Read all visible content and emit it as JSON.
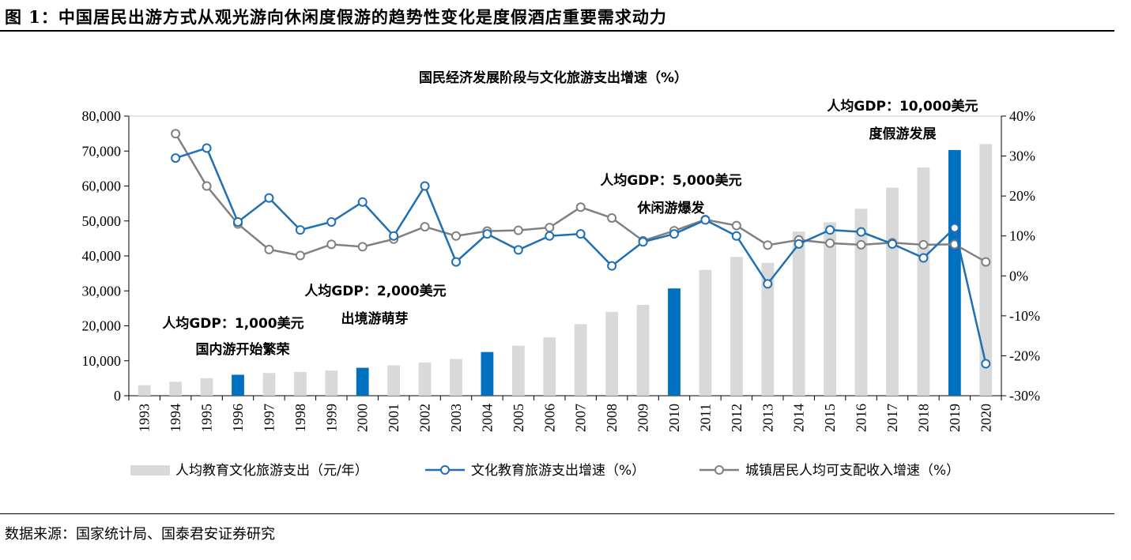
{
  "figure": {
    "title": "图 1：中国居民出游方式从观光游向休闲度假游的趋势性变化是度假酒店重要需求动力",
    "source": "数据来源：国家统计局、国泰君安证券研究"
  },
  "colors": {
    "bar_default": "#d9d9d9",
    "bar_highlight": "#0070c0",
    "line_culture": "#1f6fb5",
    "line_income": "#808080"
  },
  "chart_data": {
    "type": "bar",
    "title": "国民经济发展阶段与文化旅游支出增速（%）",
    "categories": [
      "1993",
      "1994",
      "1995",
      "1996",
      "1997",
      "1998",
      "1999",
      "2000",
      "2001",
      "2002",
      "2003",
      "2004",
      "2005",
      "2006",
      "2007",
      "2008",
      "2009",
      "2010",
      "2011",
      "2012",
      "2013",
      "2014",
      "2015",
      "2016",
      "2017",
      "2018",
      "2019",
      "2020"
    ],
    "ylim_left": [
      0,
      80000
    ],
    "ylim_right": [
      -30,
      40
    ],
    "yticks_left": [
      "0",
      "10,000",
      "20,000",
      "30,000",
      "40,000",
      "50,000",
      "60,000",
      "70,000",
      "80,000"
    ],
    "yticks_right": [
      "-30%",
      "-20%",
      "-10%",
      "0%",
      "10%",
      "20%",
      "30%",
      "40%"
    ],
    "grid": false,
    "legend_position": "bottom",
    "series": [
      {
        "name": "人均教育文化旅游支出（元/年）",
        "type": "bar",
        "axis": "left",
        "values": [
          3000,
          4000,
          5000,
          6000,
          6500,
          6800,
          7200,
          8000,
          8700,
          9500,
          10500,
          12500,
          14300,
          16700,
          20500,
          24000,
          26000,
          30700,
          36000,
          39700,
          38000,
          47000,
          49600,
          53500,
          59500,
          65300,
          70300,
          72000
        ],
        "highlight": [
          "1996",
          "2000",
          "2004",
          "2010",
          "2019"
        ]
      },
      {
        "name": "文化教育旅游支出增速（%）",
        "type": "line",
        "axis": "right",
        "x": [
          "1994",
          "1995",
          "1996",
          "1997",
          "1998",
          "1999",
          "2000",
          "2001",
          "2002",
          "2003",
          "2004",
          "2005",
          "2006",
          "2007",
          "2008",
          "2009",
          "2010",
          "2011",
          "2012",
          "2013",
          "2014",
          "2015",
          "2016",
          "2017",
          "2018",
          "2019",
          "2020"
        ],
        "values": [
          29.5,
          32,
          13.5,
          19.5,
          11.5,
          13.5,
          18.5,
          10,
          22.5,
          3.5,
          10.5,
          6.5,
          10,
          10.5,
          2.5,
          8.5,
          10.5,
          14,
          10,
          -2,
          8,
          11.5,
          11,
          8,
          4.5,
          12,
          -22
        ]
      },
      {
        "name": "城镇居民人均可支配收入增速（%）",
        "type": "line",
        "axis": "right",
        "x": [
          "1994",
          "1995",
          "1996",
          "1997",
          "1998",
          "1999",
          "2000",
          "2001",
          "2002",
          "2003",
          "2004",
          "2005",
          "2006",
          "2007",
          "2008",
          "2009",
          "2010",
          "2011",
          "2012",
          "2013",
          "2014",
          "2015",
          "2016",
          "2017",
          "2018",
          "2019",
          "2020"
        ],
        "values": [
          35.6,
          22.5,
          13,
          6.6,
          5.1,
          7.9,
          7.3,
          9.2,
          12.3,
          10,
          11.2,
          11.4,
          12.1,
          17.2,
          14.5,
          8.8,
          11.3,
          14.1,
          12.6,
          7.7,
          9,
          8.2,
          7.8,
          8.3,
          7.8,
          7.9,
          3.5
        ]
      }
    ],
    "annotations": [
      {
        "line1": "人均GDP：1,000美元",
        "line2": "国内游开始繁荣"
      },
      {
        "line1": "人均GDP：2,000美元",
        "line2": "出境游萌芽"
      },
      {
        "line1": "人均GDP：5,000美元",
        "line2": "休闲游爆发"
      },
      {
        "line1": "人均GDP：10,000美元",
        "line2": "度假游发展"
      }
    ]
  }
}
